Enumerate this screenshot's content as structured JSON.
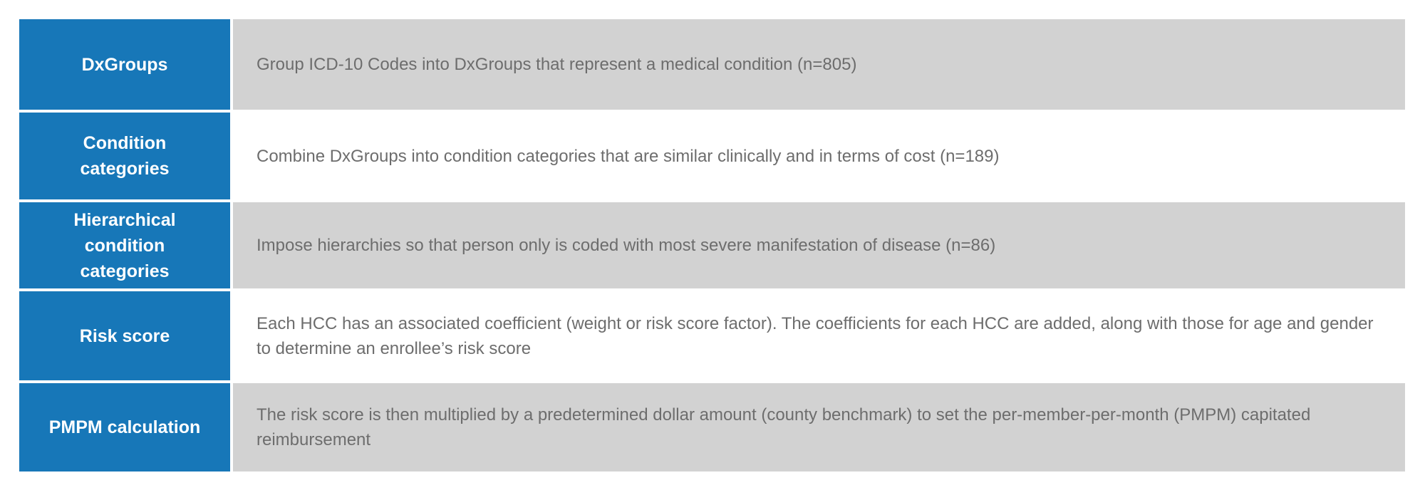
{
  "theme": {
    "label_bg": "#1777b8",
    "label_text": "#ffffff",
    "row_bg_odd": "#d2d2d2",
    "row_bg_even": "#ffffff",
    "description_text": "#6d6d6d",
    "page_bg": "#ffffff"
  },
  "table": {
    "rows": [
      {
        "label": "DxGroups",
        "description": "Group ICD-10 Codes into DxGroups that represent a medical condition (n=805)"
      },
      {
        "label": "Condition\ncategories",
        "description": "Combine DxGroups into condition categories that are similar clinically and in terms of cost (n=189)"
      },
      {
        "label": "Hierarchical\ncondition\ncategories",
        "description": "Impose hierarchies so that person only is coded with most severe manifestation of disease (n=86)"
      },
      {
        "label": "Risk score",
        "description": "Each HCC has an  associated coefficient (weight or risk score factor). The coefficients for each HCC are added, along with those for age and gender to determine an enrollee’s risk score"
      },
      {
        "label": "PMPM calculation",
        "description": "The risk score is then multiplied by a predetermined dollar amount (county benchmark) to set the per-member-per-month (PMPM) capitated reimbursement"
      }
    ]
  }
}
